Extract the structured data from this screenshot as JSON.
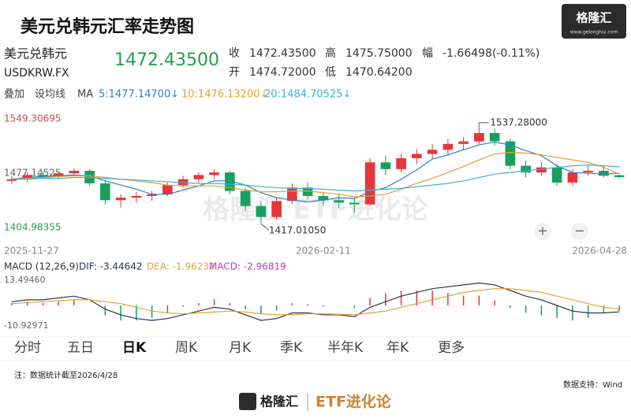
{
  "header": {
    "title": "美元兑韩元汇率走势图",
    "logo": "格隆汇",
    "logo_url": "www.gelonghui.com"
  },
  "quote": {
    "name": "美元兑韩元",
    "symbol": "USDKRW.FX",
    "price": "1472.43500",
    "close_label": "收",
    "close": "1472.43500",
    "high_label": "高",
    "high": "1475.75000",
    "change_label": "幅",
    "change": "-1.66498(-0.11%)",
    "open_label": "开",
    "open": "1474.72000",
    "low_label": "低",
    "low": "1470.64200"
  },
  "toolbar": {
    "overlay": "叠加",
    "set_ma": "设均线",
    "ma": "MA"
  },
  "chart_data": [
    {
      "type": "candlestick",
      "categories": [
        "2025-11-27",
        null,
        null,
        null,
        null,
        null,
        null,
        null,
        null,
        null,
        null,
        null,
        null,
        null,
        null,
        null,
        null,
        null,
        null,
        null,
        "2026-02-11",
        null,
        null,
        null,
        null,
        null,
        null,
        null,
        null,
        null,
        null,
        null,
        null,
        null,
        null,
        null,
        null,
        null,
        null,
        "2026-04-28"
      ],
      "open": [
        1468,
        1470,
        1475,
        1473,
        1477,
        1480,
        1465,
        1445,
        1448,
        1450,
        1452,
        1463,
        1470,
        1475,
        1478,
        1456,
        1438,
        1425,
        1444,
        1460,
        1450,
        1445,
        1442,
        1440,
        1490,
        1482,
        1495,
        1500,
        1505,
        1512,
        1515,
        1525,
        1515,
        1486,
        1478,
        1484,
        1466,
        1478,
        1480,
        1474.72
      ],
      "high": [
        1474,
        1478,
        1480,
        1479,
        1483,
        1482,
        1468,
        1452,
        1455,
        1456,
        1466,
        1474,
        1478,
        1482,
        1480,
        1460,
        1444,
        1448,
        1465,
        1466,
        1455,
        1452,
        1448,
        1495,
        1498,
        1500,
        1506,
        1512,
        1518,
        1520,
        1537.28,
        1530,
        1518,
        1492,
        1490,
        1488,
        1482,
        1486,
        1486,
        1475.75
      ],
      "low": [
        1464,
        1467,
        1471,
        1470,
        1474,
        1462,
        1440,
        1436,
        1442,
        1444,
        1450,
        1460,
        1466,
        1470,
        1452,
        1432,
        1417.0105,
        1422,
        1440,
        1446,
        1438,
        1436,
        1430,
        1438,
        1475,
        1478,
        1488,
        1494,
        1498,
        1505,
        1512,
        1510,
        1482,
        1472,
        1474,
        1462,
        1462,
        1474,
        1472,
        1470.642
      ],
      "close": [
        1470,
        1475,
        1473,
        1477,
        1480,
        1465,
        1445,
        1448,
        1450,
        1452,
        1463,
        1470,
        1475,
        1478,
        1456,
        1438,
        1425,
        1444,
        1460,
        1450,
        1445,
        1442,
        1440,
        1490,
        1482,
        1495,
        1500,
        1505,
        1512,
        1515,
        1525,
        1515,
        1486,
        1478,
        1484,
        1466,
        1478,
        1480,
        1474.09998,
        1472.435
      ],
      "up_color": "#e5363b",
      "down_color": "#17a05d",
      "ylim": [
        1404.98355,
        1549.30695
      ],
      "yticks": [
        1549.30695,
        1477.14525,
        1404.98355
      ],
      "max_label": "1537.28000",
      "min_label": "1417.01050",
      "series": [
        {
          "label": "5:1477.14700↓",
          "color": "#2f7fc0",
          "values": [
            1470,
            1472,
            1473,
            1474,
            1475,
            1474,
            1468,
            1463,
            1458,
            1452,
            1452,
            1457,
            1462,
            1468,
            1468,
            1463,
            1454,
            1448,
            1445,
            1443,
            1445,
            1448,
            1447,
            1455,
            1460,
            1470,
            1481,
            1494,
            1499,
            1505,
            1511,
            1514,
            1511,
            1504,
            1498,
            1486,
            1478,
            1477,
            1476,
            1477.147
          ]
        },
        {
          "label": "10:1476.13200↓",
          "color": "#e3a03a",
          "values": [
            1470,
            1471,
            1472,
            1473,
            1474,
            1474,
            1472,
            1470,
            1468,
            1466,
            1463,
            1462,
            1462,
            1462,
            1460,
            1457,
            1455,
            1455,
            1456,
            1456,
            1454,
            1452,
            1449,
            1450,
            1452,
            1458,
            1465,
            1471,
            1478,
            1485,
            1493,
            1500,
            1502,
            1501,
            1499,
            1496,
            1493,
            1490,
            1484,
            1476.132
          ]
        },
        {
          "label": "20:1484.70525↓",
          "color": "#3cb5c9",
          "values": [
            1470,
            1470,
            1471,
            1471,
            1472,
            1472,
            1471,
            1470,
            1469,
            1468,
            1467,
            1466,
            1465,
            1465,
            1464,
            1463,
            1461,
            1460,
            1459,
            1459,
            1458,
            1457,
            1456,
            1457,
            1458,
            1459,
            1461,
            1463,
            1465,
            1468,
            1472,
            1476,
            1478,
            1480,
            1482,
            1484,
            1486,
            1487,
            1486,
            1484.705
          ]
        }
      ]
    },
    {
      "type": "macd",
      "title": "MACD (12,26,9)",
      "ylim": [
        -10.92971,
        13.4946
      ],
      "yticks": [
        {
          "value": 13.4946,
          "label": "13.49460"
        },
        -10.92971
      ],
      "up_color": "#e5363b",
      "down_color": "#17a05d",
      "series": [
        {
          "label": "DIF: -3.44642",
          "color": "#2a3550",
          "values": [
            2,
            3,
            3,
            4,
            5,
            3,
            -2,
            -5,
            -7,
            -8,
            -7,
            -5,
            -3,
            -1,
            -2,
            -5,
            -8,
            -7,
            -4,
            -4,
            -5,
            -5,
            -6,
            -1,
            2,
            5,
            7,
            9,
            10,
            11,
            12,
            11,
            8,
            5,
            3,
            0,
            -3,
            -4,
            -4,
            -3.44642
          ]
        },
        {
          "label": "DEA: -1.96232",
          "color": "#e3a03a",
          "values": [
            1,
            1.5,
            2,
            2.5,
            3,
            3,
            2,
            1,
            -1,
            -3,
            -4,
            -4.5,
            -4,
            -3.5,
            -3,
            -3.5,
            -4.5,
            -5,
            -5,
            -4.5,
            -4.5,
            -4.8,
            -5,
            -4,
            -3,
            -1,
            1,
            3,
            5,
            7,
            8,
            9,
            9,
            8,
            7,
            5,
            3,
            1,
            -1,
            -1.96232
          ]
        },
        {
          "label": "MACD: -2.96819",
          "color": "#c03cc0",
          "bars": true,
          "values": [
            1.3,
            2,
            1.3,
            2,
            2.7,
            0,
            -5.3,
            -8,
            -8,
            -6.7,
            -4,
            -0.7,
            1.3,
            3.3,
            1.3,
            -2,
            -4.7,
            -2.7,
            1.3,
            0.7,
            -0.7,
            -0.3,
            -1.3,
            4,
            6.7,
            8,
            8,
            8,
            6.7,
            5.3,
            5.3,
            2.7,
            -1.3,
            -4,
            -5.3,
            -6.7,
            -8,
            -6.7,
            -4,
            -2.96819
          ]
        }
      ]
    }
  ],
  "zoom": [
    "+",
    "−"
  ],
  "tabs": [
    "分时",
    "五日",
    "日K",
    "周K",
    "月K",
    "季K",
    "半年K",
    "年K",
    "更多"
  ],
  "watermark": "格隆汇 ETF进化论",
  "footer": {
    "note": "注：数据统计截至2026/4/28",
    "source": "数据支持：Wind",
    "logo": "格隆汇",
    "brand": "ETF进化论"
  }
}
